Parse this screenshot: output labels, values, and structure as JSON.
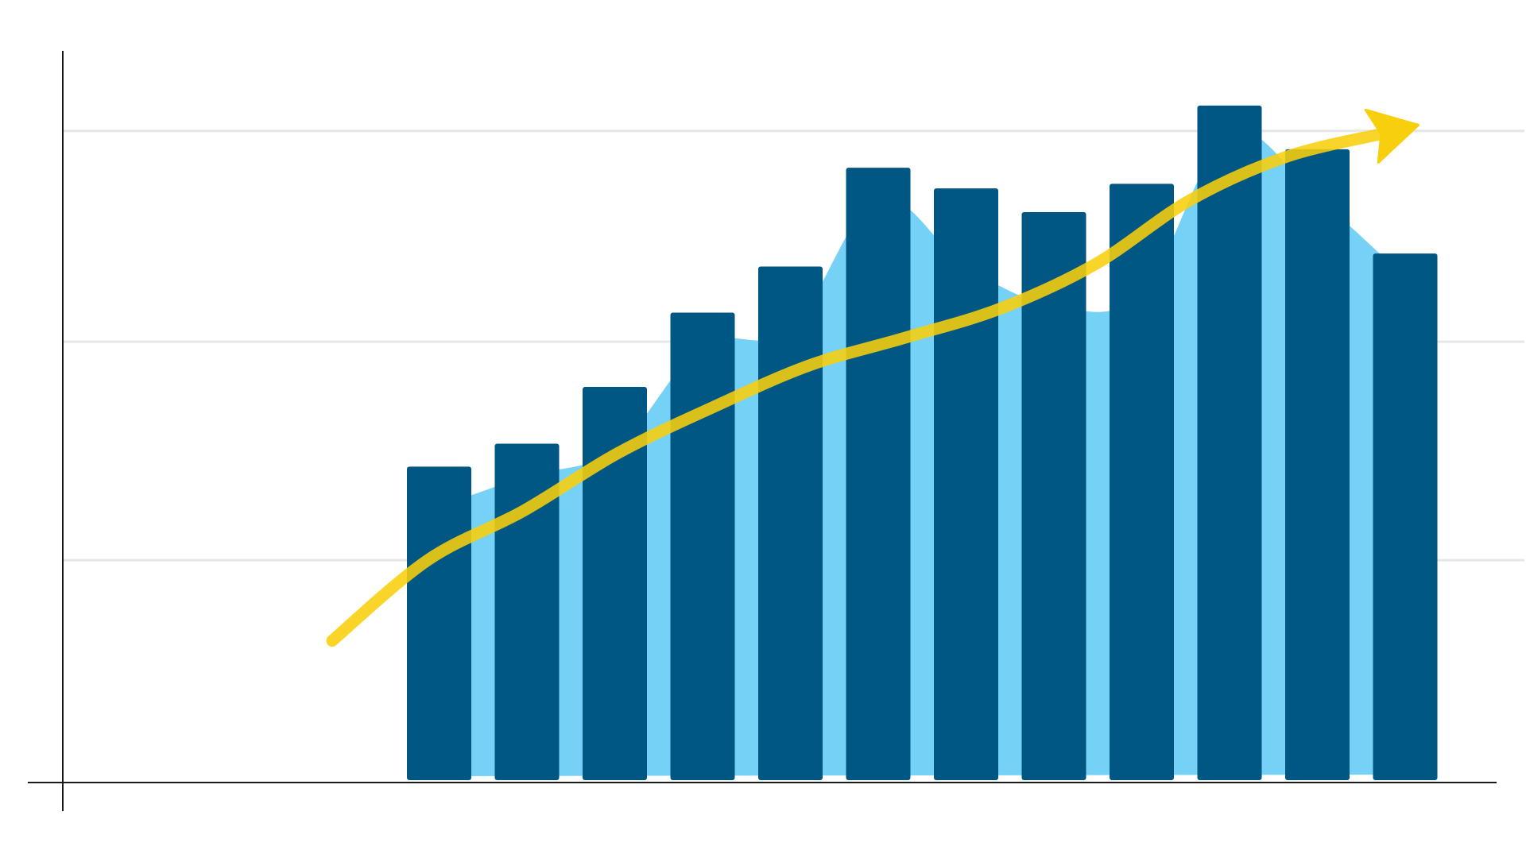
{
  "chart_data": {
    "type": "bar",
    "title": "",
    "xlabel": "",
    "ylabel": "",
    "ylim": [
      0,
      100
    ],
    "grid": true,
    "legend": "none",
    "categories": [
      "",
      "",
      "",
      "",
      "",
      "",
      "",
      "",
      "",
      "",
      "",
      ""
    ],
    "series": [
      {
        "type": "bar",
        "values": [
          41.2,
          44.2,
          51.6,
          61.3,
          67.3,
          80.2,
          77.5,
          74.4,
          78.1,
          88.3,
          82.6,
          69.0
        ]
      },
      {
        "type": "area",
        "values": [
          36.1,
          40.0,
          43.4,
          57.0,
          59.0,
          76.2,
          67.3,
          62.2,
          63.8,
          84.7,
          76.3,
          66.0
        ]
      }
    ],
    "trend": {
      "type": "line",
      "direction": "up",
      "values": [
        18.5,
        29.0,
        35.4,
        43.0,
        49.0,
        54.4,
        58.0,
        61.8,
        67.6,
        76.0,
        81.6,
        84.6
      ]
    },
    "gridlines": [
      29,
      57.5,
      85
    ]
  },
  "colors": {
    "bar": "#005784",
    "area": "#76d1f7",
    "trend": "#f8cf0d",
    "axis": "#1a1a1a",
    "grid": "#e6e6e6"
  }
}
